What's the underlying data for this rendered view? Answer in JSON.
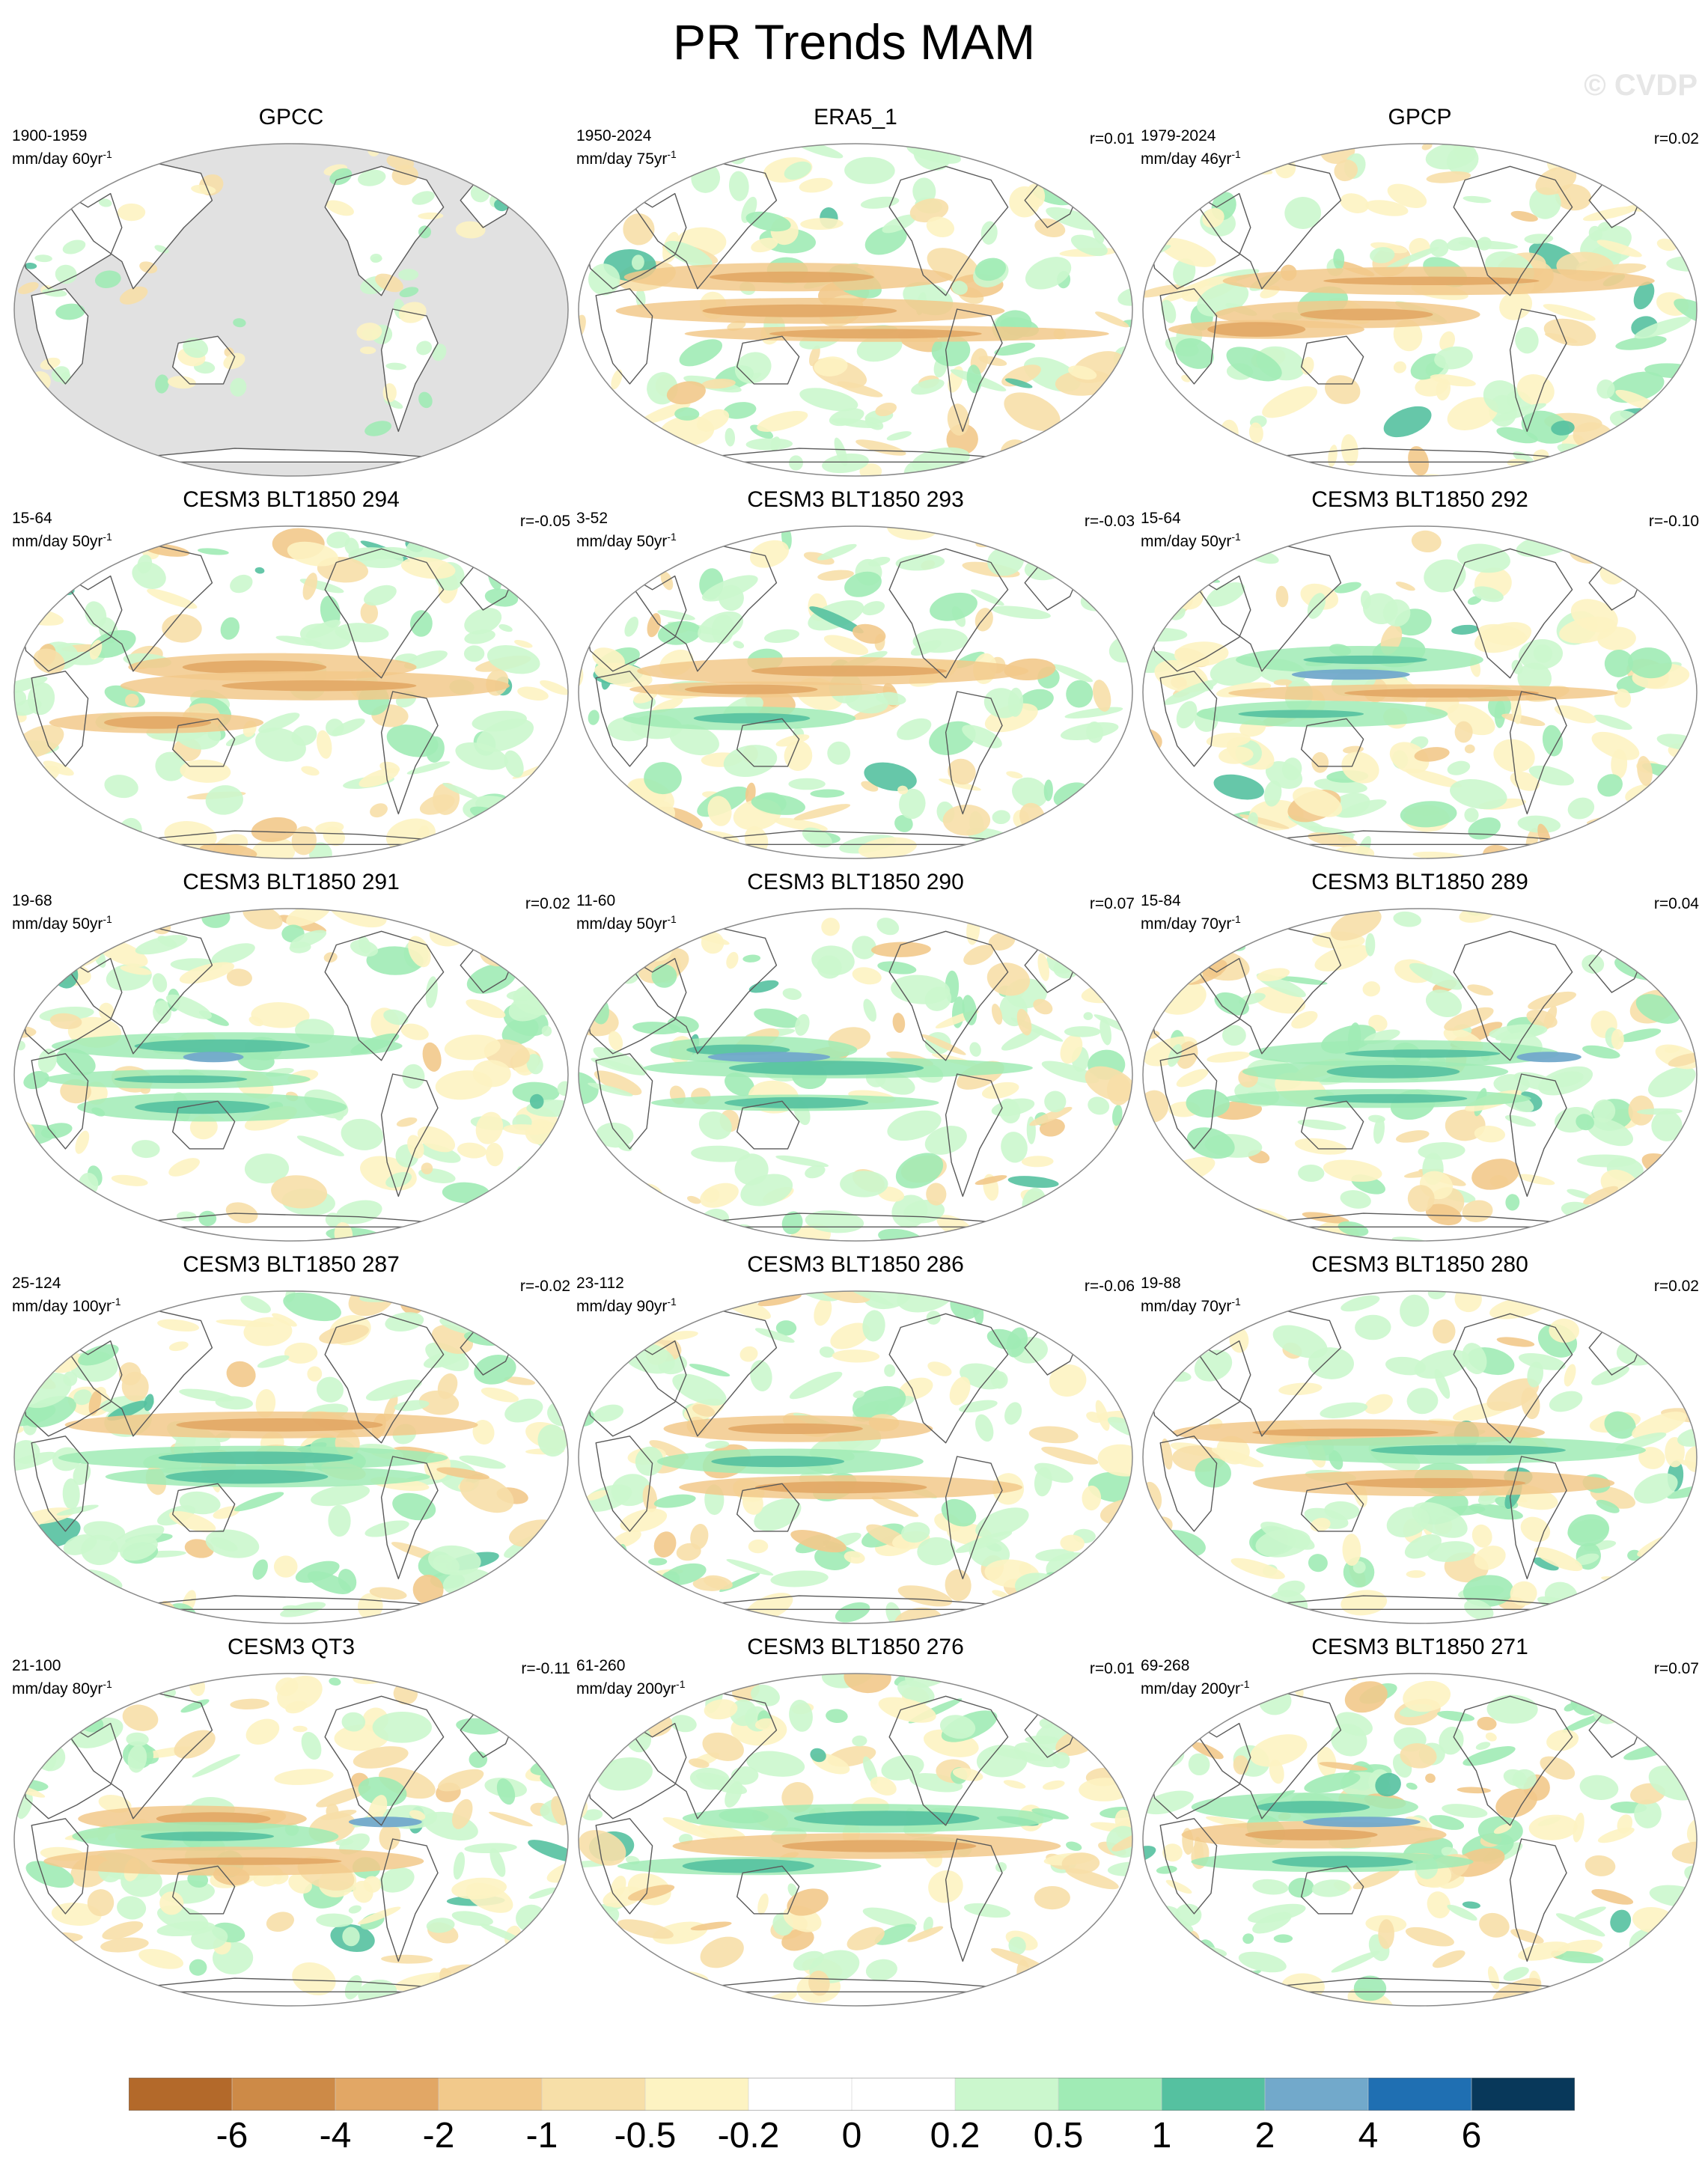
{
  "title": "PR Trends MAM",
  "watermark": "© CVDP",
  "colors": {
    "land_mask": "#e1e1e1",
    "coast": "#5a5a5a"
  },
  "panels": [
    {
      "title": "GPCC",
      "period": "1900-1959",
      "units": "mm/day 60yr",
      "corr": "",
      "masked": true,
      "pattern": 0
    },
    {
      "title": "ERA5_1",
      "period": "1950-2024",
      "units": "mm/day 75yr",
      "corr": "r=0.01",
      "masked": false,
      "pattern": 1
    },
    {
      "title": "GPCP",
      "period": "1979-2024",
      "units": "mm/day 46yr",
      "corr": "r=0.02",
      "masked": false,
      "pattern": 2
    },
    {
      "title": "CESM3 BLT1850 294",
      "period": "15-64",
      "units": "mm/day 50yr",
      "corr": "r=-0.05",
      "masked": false,
      "pattern": 3
    },
    {
      "title": "CESM3 BLT1850 293",
      "period": "3-52",
      "units": "mm/day 50yr",
      "corr": "r=-0.03",
      "masked": false,
      "pattern": 4
    },
    {
      "title": "CESM3 BLT1850 292",
      "period": "15-64",
      "units": "mm/day 50yr",
      "corr": "r=-0.10",
      "masked": false,
      "pattern": 5
    },
    {
      "title": "CESM3 BLT1850 291",
      "period": "19-68",
      "units": "mm/day 50yr",
      "corr": "r=0.02",
      "masked": false,
      "pattern": 6
    },
    {
      "title": "CESM3 BLT1850 290",
      "period": "11-60",
      "units": "mm/day 50yr",
      "corr": "r=0.07",
      "masked": false,
      "pattern": 7
    },
    {
      "title": "CESM3 BLT1850 289",
      "period": "15-84",
      "units": "mm/day 70yr",
      "corr": "r=0.04",
      "masked": false,
      "pattern": 8
    },
    {
      "title": "CESM3 BLT1850 287",
      "period": "25-124",
      "units": "mm/day 100yr",
      "corr": "r=-0.02",
      "masked": false,
      "pattern": 9
    },
    {
      "title": "CESM3 BLT1850 286",
      "period": "23-112",
      "units": "mm/day 90yr",
      "corr": "r=-0.06",
      "masked": false,
      "pattern": 10
    },
    {
      "title": "CESM3 BLT1850 280",
      "period": "19-88",
      "units": "mm/day 70yr",
      "corr": "r=0.02",
      "masked": false,
      "pattern": 11
    },
    {
      "title": "CESM3 QT3",
      "period": "21-100",
      "units": "mm/day 80yr",
      "corr": "r=-0.11",
      "masked": false,
      "pattern": 12
    },
    {
      "title": "CESM3 BLT1850 276",
      "period": "61-260",
      "units": "mm/day 200yr",
      "corr": "r=0.01",
      "masked": false,
      "pattern": 13
    },
    {
      "title": "CESM3 BLT1850 271",
      "period": "69-268",
      "units": "mm/day 200yr",
      "corr": "r=0.07",
      "masked": false,
      "pattern": 14
    }
  ],
  "colorbar": {
    "colors": [
      "#b3692a",
      "#cd8a47",
      "#e2a765",
      "#f2c98b",
      "#f7dfa8",
      "#fdf3c2",
      "#ffffff",
      "#ffffff",
      "#cbf7cd",
      "#a0ebb5",
      "#55c1a0",
      "#72a9cb",
      "#1f6fb2",
      "#08385a"
    ],
    "labels": [
      "-6",
      "-4",
      "-2",
      "-1",
      "-0.5",
      "-0.2",
      "0",
      "0.2",
      "0.5",
      "1",
      "2",
      "4",
      "6"
    ]
  }
}
